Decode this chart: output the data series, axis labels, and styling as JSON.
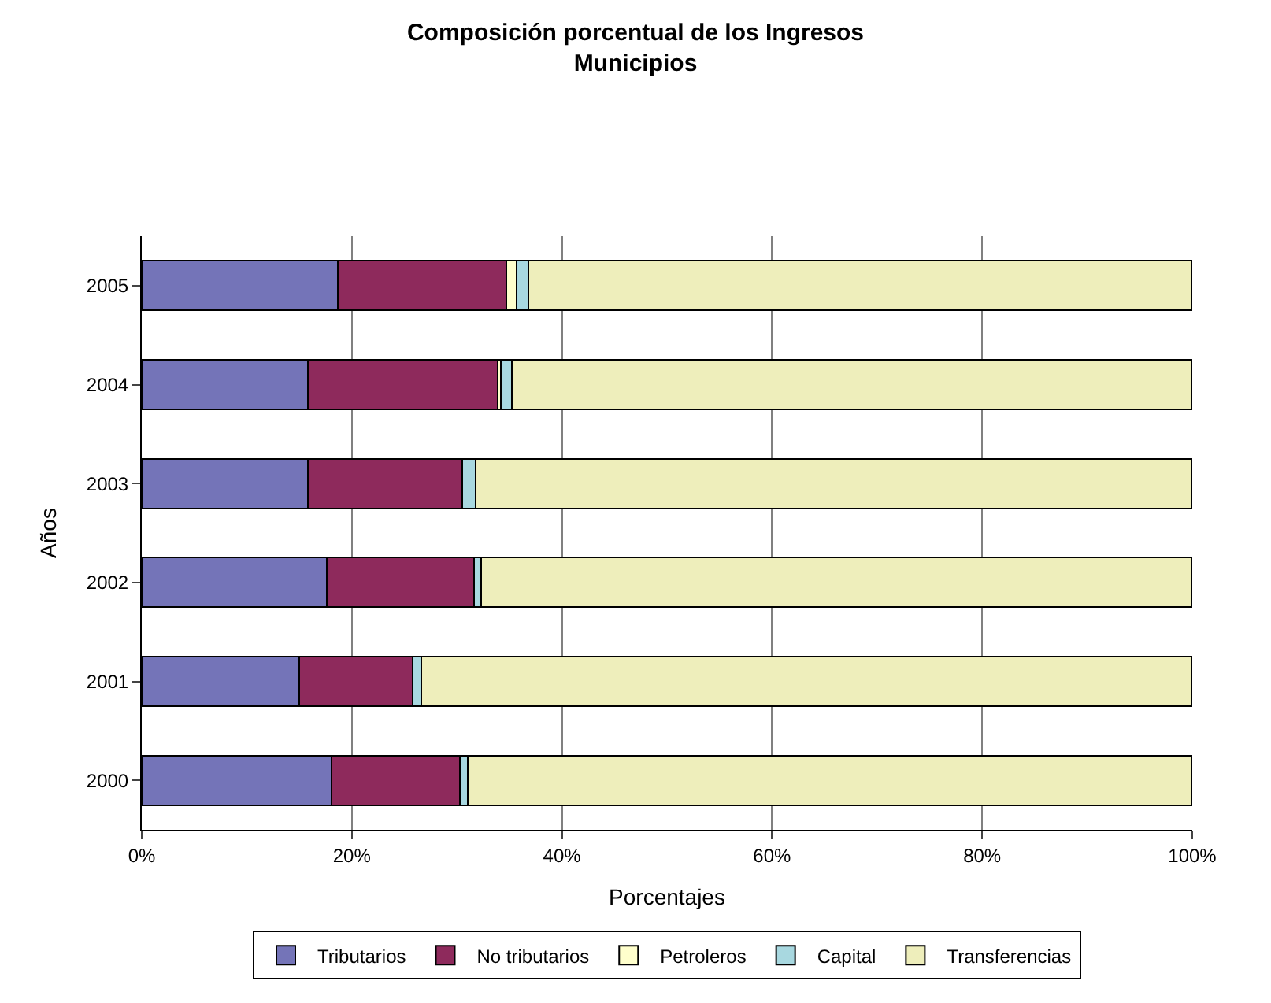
{
  "chart_data": {
    "type": "bar",
    "orientation": "horizontal",
    "stacked": true,
    "title": "Composición porcentual de los Ingresos\nMunicipios",
    "xlabel": "Porcentajes",
    "ylabel": "Años",
    "categories": [
      "2005",
      "2004",
      "2003",
      "2002",
      "2001",
      "2000"
    ],
    "series": [
      {
        "name": "Tributarios",
        "color": "#7474b8",
        "values": [
          18.7,
          15.8,
          15.8,
          17.6,
          15.0,
          18.1
        ]
      },
      {
        "name": "No tributarios",
        "color": "#8e2a5c",
        "values": [
          16.0,
          18.1,
          14.7,
          14.0,
          10.8,
          12.2
        ]
      },
      {
        "name": "Petroleros",
        "color": "#ffffcc",
        "values": [
          1.0,
          0.3,
          0,
          0,
          0,
          0
        ]
      },
      {
        "name": "Capital",
        "color": "#a8d8e0",
        "values": [
          1.1,
          1.0,
          1.3,
          0.7,
          0.8,
          0.7
        ]
      },
      {
        "name": "Transferencias",
        "color": "#eeeebb",
        "values": [
          63.2,
          64.8,
          68.2,
          67.7,
          73.4,
          69.0
        ]
      }
    ],
    "xlim": [
      0,
      100
    ],
    "xticks": [
      {
        "value": 0,
        "label": "0%"
      },
      {
        "value": 20,
        "label": "20%"
      },
      {
        "value": 40,
        "label": "40%"
      },
      {
        "value": 60,
        "label": "60%"
      },
      {
        "value": 80,
        "label": "80%"
      },
      {
        "value": 100,
        "label": "100%"
      }
    ],
    "grid": "x",
    "legend": "bottom"
  }
}
